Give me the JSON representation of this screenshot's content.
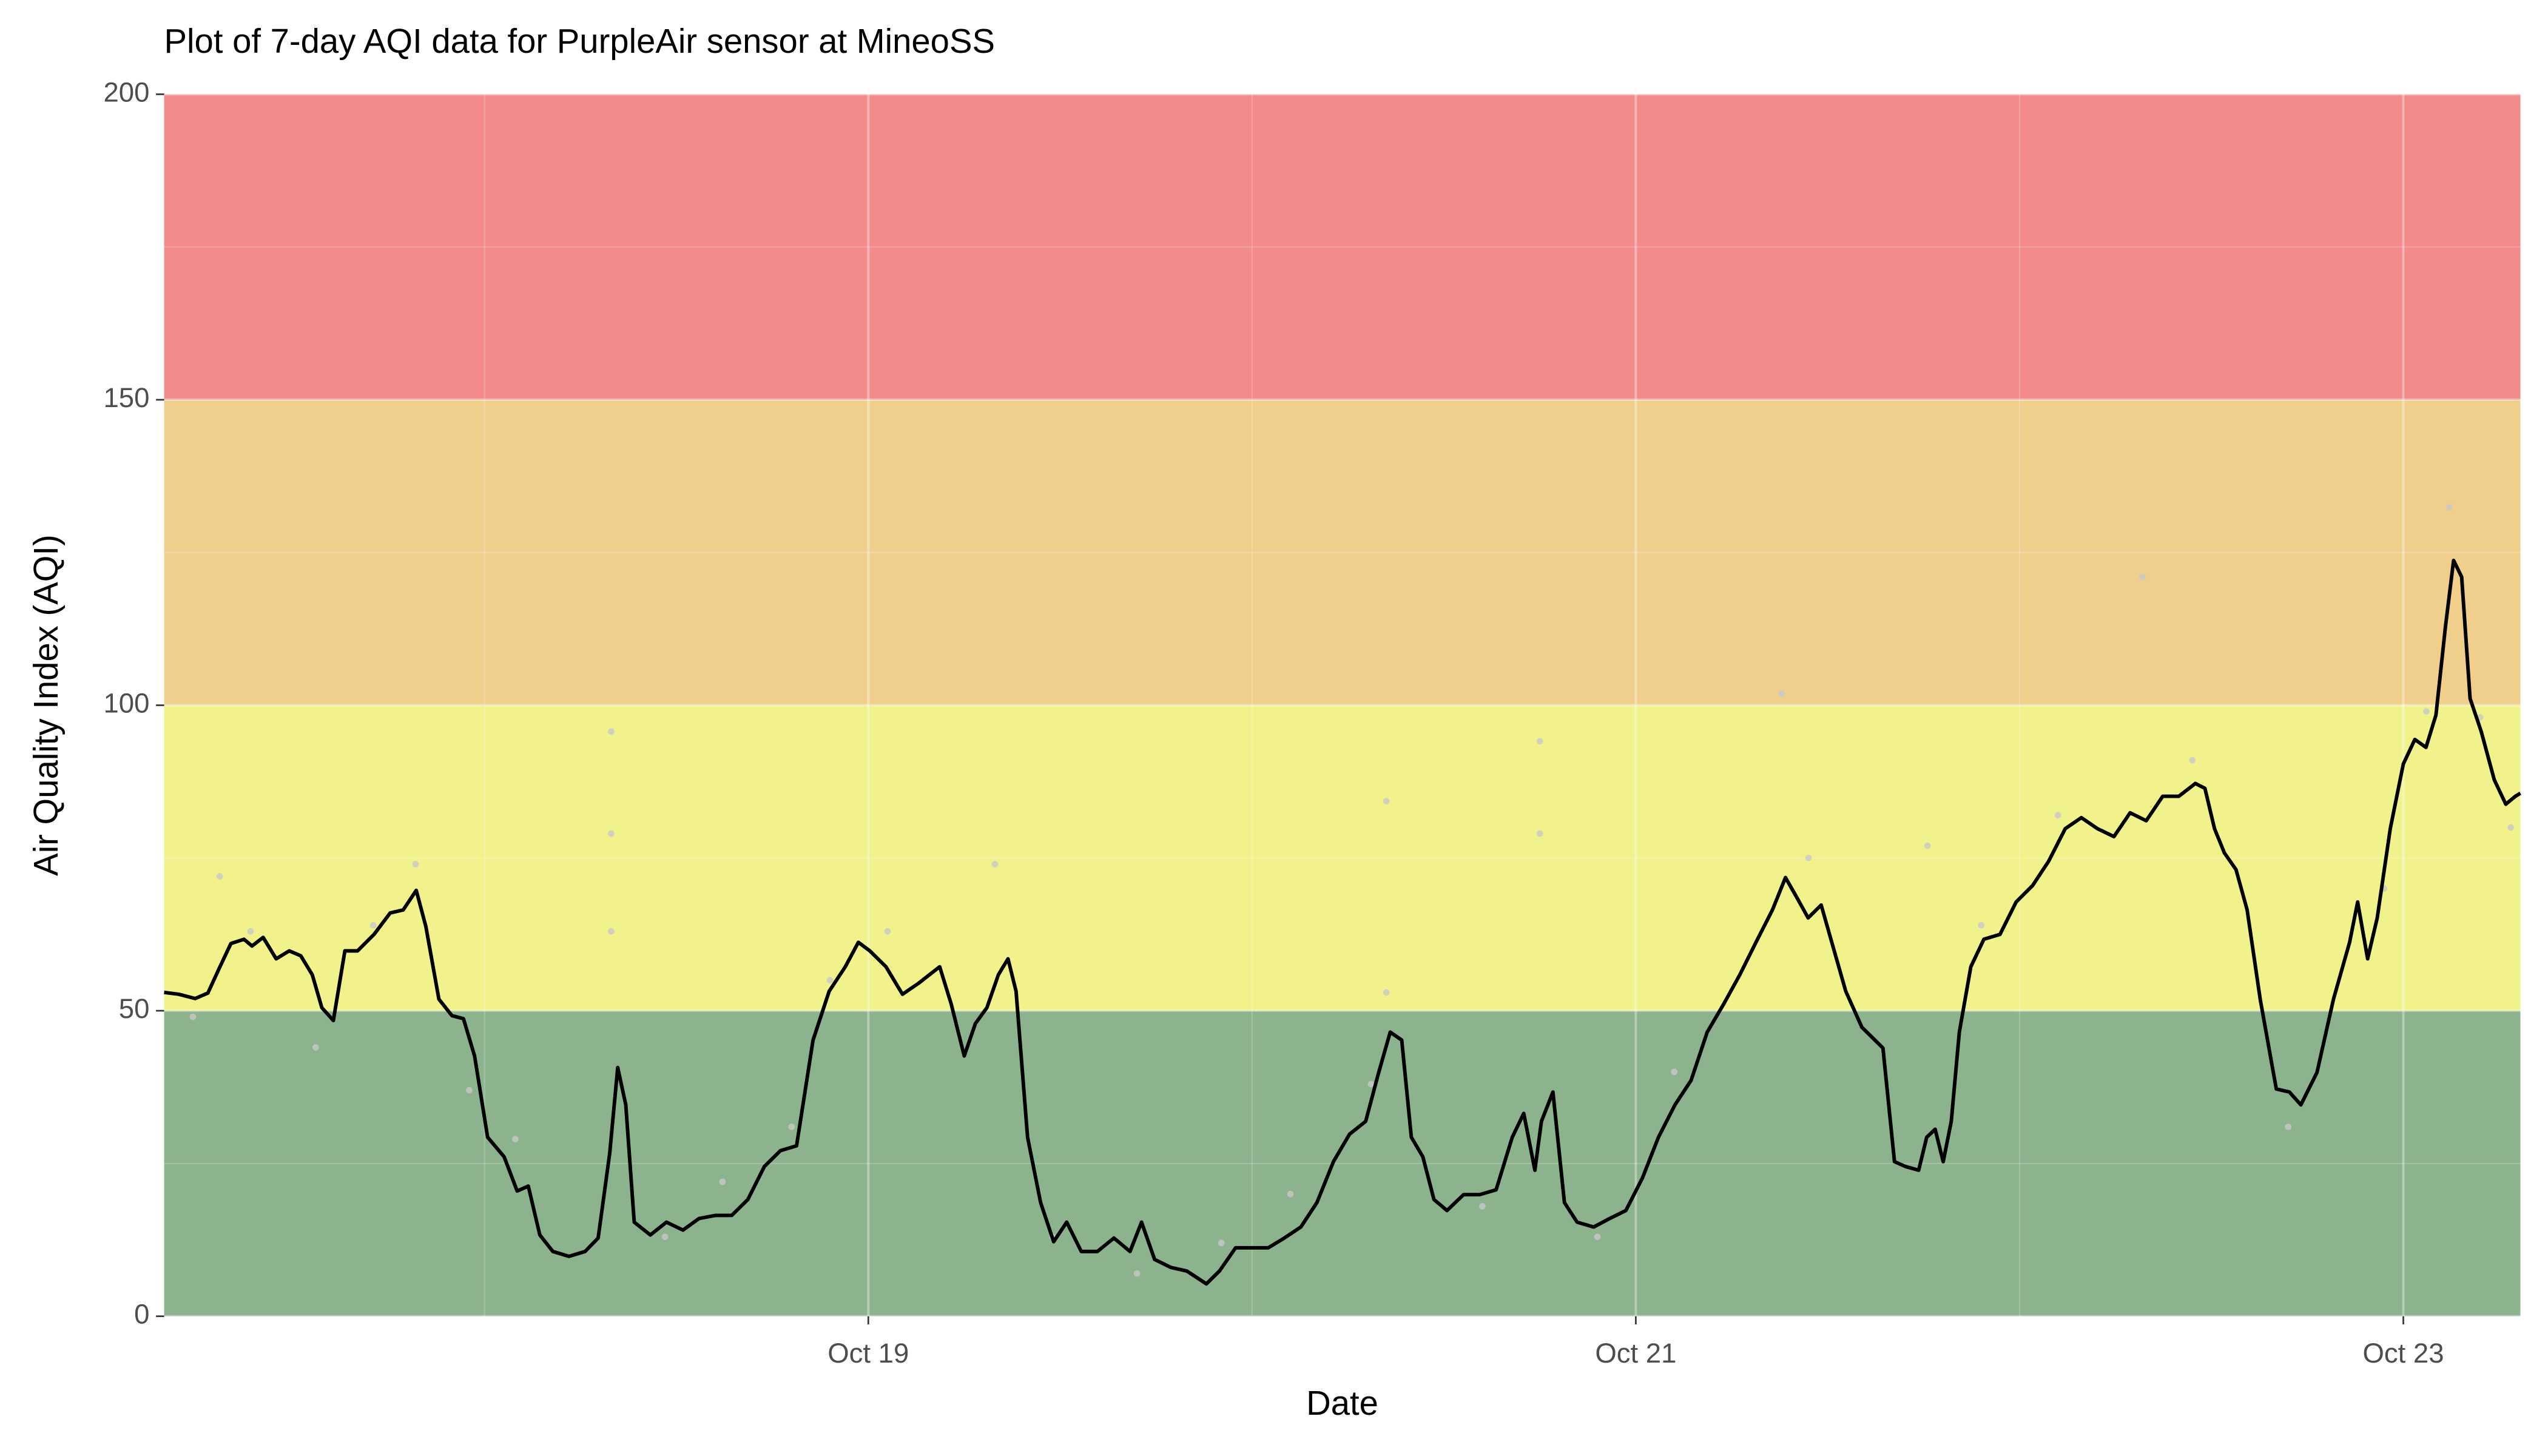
{
  "chart_data": {
    "type": "line",
    "title": "Plot of 7-day AQI data for PurpleAir sensor at MineoSS",
    "xlabel": "Date",
    "ylabel": "Air Quality Index (AQI)",
    "xlim": [
      17.165,
      23.305
    ],
    "xticks": [
      {
        "value": 19,
        "label": "Oct 19"
      },
      {
        "value": 21,
        "label": "Oct 21"
      },
      {
        "value": 23,
        "label": "Oct 23"
      }
    ],
    "xminor": [
      18,
      20,
      22
    ],
    "ylim": [
      0,
      200
    ],
    "yticks": [
      0,
      50,
      100,
      150,
      200
    ],
    "yminor": [
      25,
      75,
      125,
      175
    ],
    "grid": true,
    "bands": [
      {
        "from": 0,
        "to": 50,
        "color": "#8cb38d"
      },
      {
        "from": 50,
        "to": 100,
        "color": "#f1f28c"
      },
      {
        "from": 100,
        "to": 150,
        "color": "#f0cf8c"
      },
      {
        "from": 150,
        "to": 200,
        "color": "#f38b8b"
      }
    ],
    "color": "#000000",
    "x": [
      17.165,
      17.203,
      17.246,
      17.279,
      17.309,
      17.339,
      17.373,
      17.394,
      17.423,
      17.457,
      17.491,
      17.521,
      17.551,
      17.576,
      17.606,
      17.636,
      17.669,
      17.712,
      17.754,
      17.788,
      17.822,
      17.847,
      17.881,
      17.915,
      17.945,
      17.974,
      18.008,
      18.051,
      18.085,
      18.114,
      18.144,
      18.178,
      18.22,
      18.262,
      18.296,
      18.326,
      18.347,
      18.368,
      18.39,
      18.432,
      18.474,
      18.517,
      18.559,
      18.601,
      18.644,
      18.686,
      18.729,
      18.771,
      18.813,
      18.856,
      18.898,
      18.94,
      18.974,
      19.004,
      19.046,
      19.089,
      19.131,
      19.186,
      19.216,
      19.25,
      19.279,
      19.309,
      19.339,
      19.364,
      19.385,
      19.415,
      19.449,
      19.483,
      19.517,
      19.555,
      19.597,
      19.64,
      19.682,
      19.712,
      19.746,
      19.788,
      19.83,
      19.881,
      19.915,
      19.957,
      20.0,
      20.042,
      20.084,
      20.127,
      20.169,
      20.212,
      20.254,
      20.296,
      20.33,
      20.36,
      20.39,
      20.415,
      20.445,
      20.474,
      20.508,
      20.551,
      20.593,
      20.636,
      20.678,
      20.708,
      20.737,
      20.754,
      20.784,
      20.814,
      20.847,
      20.89,
      20.932,
      20.974,
      21.017,
      21.059,
      21.102,
      21.144,
      21.186,
      21.229,
      21.271,
      21.313,
      21.356,
      21.39,
      21.419,
      21.449,
      21.483,
      21.517,
      21.547,
      21.589,
      21.644,
      21.674,
      21.703,
      21.737,
      21.758,
      21.78,
      21.801,
      21.822,
      21.843,
      21.873,
      21.907,
      21.949,
      21.991,
      22.034,
      22.076,
      22.119,
      22.161,
      22.203,
      22.246,
      22.288,
      22.33,
      22.373,
      22.415,
      22.458,
      22.483,
      22.508,
      22.534,
      22.564,
      22.593,
      22.627,
      22.669,
      22.703,
      22.733,
      22.775,
      22.818,
      22.86,
      22.881,
      22.907,
      22.932,
      22.966,
      23.0,
      23.03,
      23.059,
      23.085,
      23.11,
      23.131,
      23.152,
      23.174,
      23.203,
      23.237,
      23.267,
      23.292,
      23.305
    ],
    "values": [
      53,
      52.7,
      52,
      52.9,
      57,
      61,
      61.7,
      60.6,
      62,
      58.5,
      59.8,
      59,
      55.9,
      50.5,
      48.4,
      59.8,
      59.8,
      62.5,
      66,
      66.5,
      69.7,
      63.8,
      51.9,
      49.2,
      48.7,
      42.6,
      29.3,
      26.1,
      20.5,
      21.3,
      13.3,
      10.6,
      9.8,
      10.6,
      12.8,
      26.6,
      40.7,
      34.6,
      15.4,
      13.3,
      15.4,
      14.1,
      16,
      16.5,
      16.5,
      19.1,
      24.5,
      27.1,
      27.9,
      45.2,
      53.2,
      57.2,
      61.2,
      59.8,
      57.2,
      52.7,
      54.5,
      57.2,
      51.1,
      42.6,
      47.9,
      50.5,
      55.9,
      58.5,
      53.2,
      29.3,
      18.6,
      12.2,
      15.4,
      10.6,
      10.6,
      12.8,
      10.6,
      15.4,
      9.3,
      8,
      7.4,
      5.3,
      7.4,
      11.2,
      11.2,
      11.2,
      12.8,
      14.6,
      18.6,
      25.3,
      29.8,
      31.9,
      39.9,
      46.5,
      45.2,
      29.3,
      26.1,
      19.1,
      17.3,
      19.9,
      19.9,
      20.7,
      29.3,
      33.2,
      23.9,
      31.9,
      36.7,
      18.6,
      15.4,
      14.6,
      16,
      17.3,
      22.6,
      29.3,
      34.6,
      38.6,
      46.5,
      51.1,
      55.9,
      61.2,
      66.5,
      71.8,
      68.6,
      65.2,
      67.3,
      59.8,
      53.2,
      47.3,
      43.9,
      25.3,
      24.5,
      23.9,
      29.3,
      30.6,
      25.3,
      31.9,
      46.5,
      57.2,
      61.7,
      62.5,
      67.8,
      70.5,
      74.5,
      79.8,
      81.6,
      79.8,
      78.5,
      82.4,
      81.1,
      85.1,
      85.1,
      87.2,
      86.4,
      79.8,
      75.8,
      73.1,
      66.5,
      51.9,
      37.2,
      36.7,
      34.6,
      39.9,
      51.9,
      61.2,
      67.8,
      58.5,
      65.2,
      79.8,
      90.4,
      94.4,
      93.1,
      98.4,
      113,
      123.7,
      121,
      101.1,
      95.7,
      87.8,
      83.8,
      85.1,
      85.6
    ],
    "points": {
      "color": "#c8c8c8",
      "x": [
        17.24,
        17.31,
        17.39,
        17.56,
        17.71,
        17.82,
        17.96,
        18.08,
        18.33,
        18.33,
        18.33,
        18.47,
        18.62,
        18.8,
        18.9,
        19.05,
        19.33,
        19.48,
        19.7,
        19.92,
        20.1,
        20.31,
        20.35,
        20.35,
        20.6,
        20.75,
        20.75,
        20.9,
        21.1,
        21.38,
        21.45,
        21.76,
        21.9,
        22.1,
        22.32,
        22.45,
        22.7,
        22.95,
        23.06,
        23.12,
        23.2,
        23.28
      ],
      "values": [
        49,
        72,
        63,
        44,
        64,
        74,
        37,
        29,
        95.7,
        79,
        63,
        13,
        22,
        31,
        55,
        63,
        74,
        13,
        7,
        12,
        20,
        38,
        84.3,
        53,
        18,
        94.1,
        79,
        13,
        40,
        101.9,
        75,
        77,
        64,
        82,
        121,
        91,
        31,
        70,
        99,
        132.4,
        98,
        80
      ]
    }
  }
}
